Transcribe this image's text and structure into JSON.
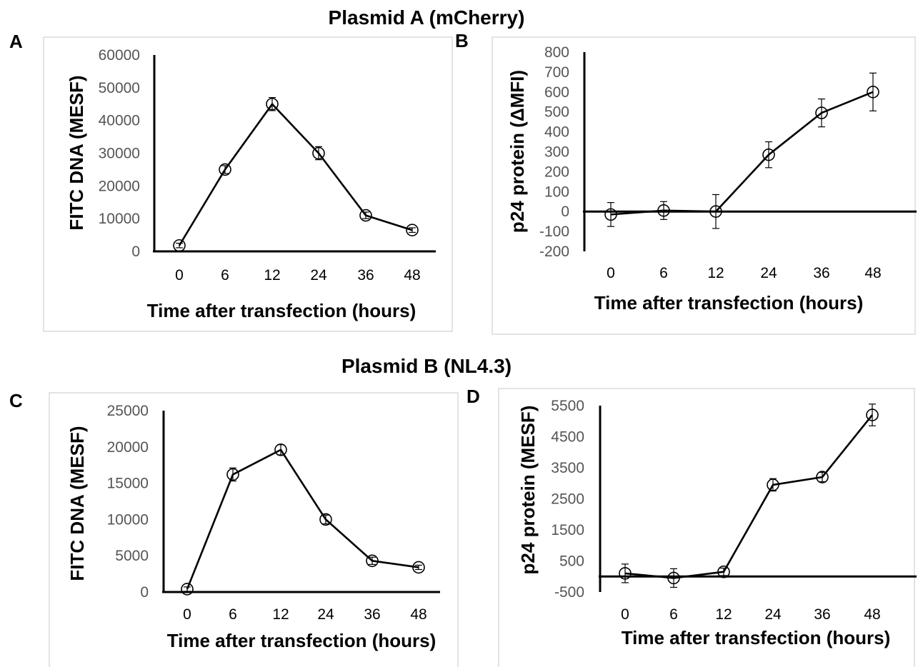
{
  "sections": [
    {
      "title": "Plasmid A (mCherry)"
    },
    {
      "title": "Plasmid B (NL4.3)"
    }
  ],
  "colors": {
    "frame": "#d0d0d0",
    "axis": "#000000",
    "line": "#000000",
    "tick_label": "#555555"
  },
  "chart_data": [
    {
      "panel": "A",
      "type": "line",
      "categories": [
        "0",
        "6",
        "12",
        "24",
        "36",
        "48"
      ],
      "series": [
        {
          "values": [
            1800,
            25000,
            45000,
            30000,
            11000,
            6500
          ],
          "error": [
            700,
            1200,
            2000,
            2000,
            1000,
            700
          ]
        }
      ],
      "xlabel": "Time after transfection  (hours)",
      "ylabel": "FITC DNA (MESF)",
      "ylim": [
        0,
        60000
      ],
      "yticks": [
        0,
        10000,
        20000,
        30000,
        40000,
        50000,
        60000
      ],
      "grid": false,
      "markers": "open-circle"
    },
    {
      "panel": "B",
      "type": "line",
      "categories": [
        "0",
        "6",
        "12",
        "24",
        "36",
        "48"
      ],
      "series": [
        {
          "values": [
            -15,
            5,
            0,
            285,
            495,
            600
          ],
          "error": [
            60,
            45,
            85,
            65,
            70,
            95
          ]
        }
      ],
      "xlabel": "Time after transfection  (hours)",
      "ylabel": "p24 protein (ΔMFI)",
      "ylim": [
        -200,
        800
      ],
      "yticks": [
        -200,
        -100,
        0,
        100,
        200,
        300,
        400,
        500,
        600,
        700,
        800
      ],
      "grid": false,
      "markers": "open-circle"
    },
    {
      "panel": "C",
      "type": "line",
      "categories": [
        "0",
        "6",
        "12",
        "24",
        "36",
        "48"
      ],
      "series": [
        {
          "values": [
            400,
            16200,
            19600,
            10000,
            4300,
            3400
          ],
          "error": [
            300,
            900,
            700,
            600,
            500,
            300
          ]
        }
      ],
      "xlabel": "Time after transfection  (hours)",
      "ylabel": "FITC DNA (MESF)",
      "ylim": [
        0,
        25000
      ],
      "yticks": [
        0,
        5000,
        10000,
        15000,
        20000,
        25000
      ],
      "grid": false,
      "markers": "open-circle"
    },
    {
      "panel": "D",
      "type": "line",
      "categories": [
        "0",
        "6",
        "12",
        "24",
        "36",
        "48"
      ],
      "series": [
        {
          "values": [
            100,
            -50,
            150,
            2950,
            3200,
            5200
          ],
          "error": [
            300,
            300,
            120,
            200,
            150,
            350
          ]
        }
      ],
      "xlabel": "Time after transfection  (hours)",
      "ylabel": "p24 protein (MESF)",
      "ylim": [
        -500,
        5500
      ],
      "yticks": [
        -500,
        500,
        1500,
        2500,
        3500,
        4500,
        5500
      ],
      "grid": false,
      "markers": "open-circle"
    }
  ]
}
